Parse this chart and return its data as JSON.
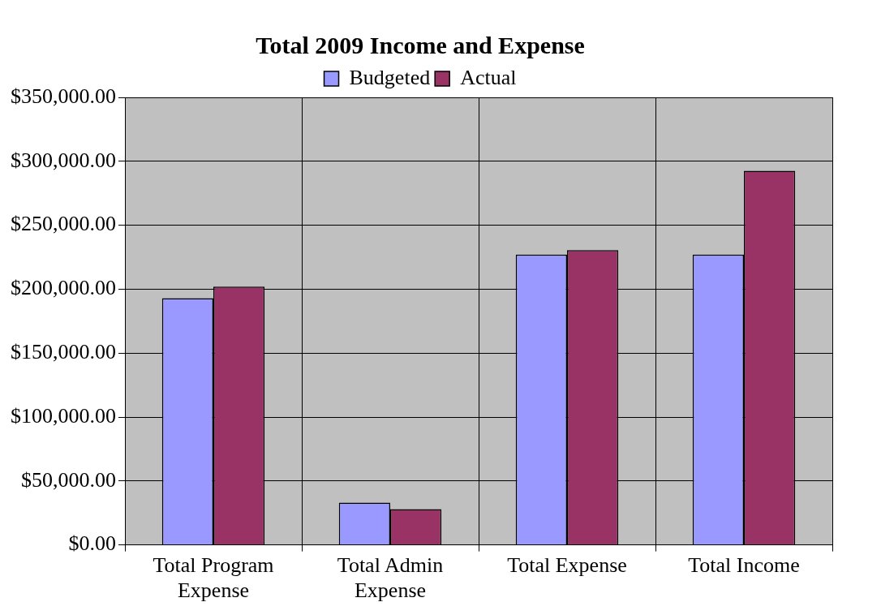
{
  "chart_data": {
    "type": "bar",
    "title": "Total 2009 Income and Expense",
    "categories": [
      "Total Program Expense",
      "Total Admin Expense",
      "Total Expense",
      "Total Income"
    ],
    "series": [
      {
        "name": "Budgeted",
        "color": "#9999ff",
        "values": [
          193000,
          33000,
          227000,
          227000
        ]
      },
      {
        "name": "Actual",
        "color": "#993366",
        "values": [
          202000,
          28000,
          230500,
          292500
        ]
      }
    ],
    "ylim": [
      0,
      350000
    ],
    "yticks": [
      {
        "value": 0,
        "label": "$0.00"
      },
      {
        "value": 50000,
        "label": "$50,000.00"
      },
      {
        "value": 100000,
        "label": "$100,000.00"
      },
      {
        "value": 150000,
        "label": "$150,000.00"
      },
      {
        "value": 200000,
        "label": "$200,000.00"
      },
      {
        "value": 250000,
        "label": "$250,000.00"
      },
      {
        "value": 300000,
        "label": "$300,000.00"
      },
      {
        "value": 350000,
        "label": "$350,000.00"
      }
    ],
    "grid": true,
    "legend": "top"
  }
}
